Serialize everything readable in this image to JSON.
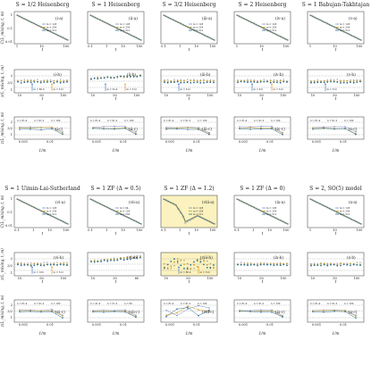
{
  "colors": {
    "s1": "#7f8fc8",
    "s2": "#c8a030",
    "s3": "#2f6f95",
    "ref": "#909090",
    "arrow_blue": "#4a7fd0",
    "arrow_orange": "#e8a020",
    "highlight": "#fbf2bf"
  },
  "chart_data": [
    {
      "section": "top",
      "columns": [
        {
          "title": "S = 1/2 Heisenberg",
          "a": "(i-a)",
          "b": "(i-b)",
          "c": "(i-c)",
          "legend_a": [
            "m = 128",
            "m = 256",
            "m = 512"
          ],
          "legend_c": [
            "n = 81.4",
            "n = 91.2",
            "n = 100"
          ],
          "arrows_b": [
            "m = 80.0",
            "m = 512"
          ],
          "highlight": false,
          "xticks_a": [
            "1",
            "10",
            "100"
          ],
          "xticks_b": [
            "10",
            "50",
            "100"
          ],
          "xticks_c": [
            "0.001",
            "0.01"
          ]
        },
        {
          "title": "S = 1 Heisenberg",
          "a": "(ii-a)",
          "b": "(ii-b)",
          "c": "(ii-c)",
          "legend_a": [
            "m = 128",
            "m = 256",
            "m = 512"
          ],
          "legend_c": [
            "n = 81.4",
            "n = 91.2",
            "n = 100"
          ],
          "arrows_b": [
            "m = 81.4",
            "m = 512"
          ],
          "highlight": false,
          "xticks_a": [
            "0.1",
            "1",
            "10",
            "100"
          ],
          "xticks_b": [
            "10",
            "50",
            "100"
          ],
          "xticks_c": [
            "0.001",
            "0.01"
          ]
        },
        {
          "title": "S = 3/2 Heisenberg",
          "a": "(iii-a)",
          "b": "(iii-b)",
          "c": "(iii-c)",
          "legend_a": [
            "m = 128",
            "m = 256",
            "m = 512"
          ],
          "legend_c": [
            "n = 81.4",
            "n = 91.2",
            "n = 100"
          ],
          "arrows_b": [
            "m = 512"
          ],
          "highlight": false,
          "xticks_a": [
            "0.1",
            "1",
            "10",
            "100"
          ],
          "xticks_b": [
            "10",
            "50",
            "100"
          ],
          "xticks_c": [
            "0.001",
            "0.01"
          ]
        },
        {
          "title": "S = 2 Heisenberg",
          "a": "(iv-a)",
          "b": "(iv-b)",
          "c": "(iv-c)",
          "legend_a": [
            "m = 128",
            "m = 256",
            "m = 512"
          ],
          "legend_c": [
            "n = 81.4",
            "n = 91.2",
            "n = 100"
          ],
          "arrows_b": [
            "m = 8.0",
            "m = 512"
          ],
          "highlight": false,
          "xticks_a": [
            "1",
            "10",
            "100"
          ],
          "xticks_b": [
            "10",
            "50",
            "100"
          ],
          "xticks_c": [
            "0.001",
            "0.01"
          ]
        },
        {
          "title": "S = 1 Babujan-Takhtajan",
          "a": "(v-a)",
          "b": "(v-b)",
          "c": "(v-c)",
          "legend_a": [
            "m = 128",
            "m = 256",
            "m = 512"
          ],
          "legend_c": [
            "n = 81.4",
            "n = 91.2",
            "n = 100"
          ],
          "arrows_b": [
            "m = 512"
          ],
          "highlight": false,
          "xticks_a": [
            "1",
            "10",
            "100"
          ],
          "xticks_b": [
            "10",
            "50",
            "100"
          ],
          "xticks_c": [
            "0.001",
            "0.01"
          ]
        }
      ]
    },
    {
      "section": "bottom",
      "columns": [
        {
          "title": "S = 1 Uimin-Lai-Sutherland",
          "a": "(vi-a)",
          "b": "(vi-b)",
          "c": "(vi-c)",
          "legend_a": [
            "m = 128",
            "m = 256",
            "m = 512"
          ],
          "legend_c": [
            "n = 81.4",
            "n = 91.2",
            "n = 100"
          ],
          "arrows_b": [
            "m = 100",
            "m = 512"
          ],
          "highlight": false,
          "xticks_a": [
            "0.1",
            "1",
            "10",
            "100"
          ],
          "xticks_b": [
            "10",
            "50",
            "100"
          ],
          "xticks_c": [
            "0.001",
            "0.01"
          ]
        },
        {
          "title": "S = 1 ZF (Δ = 0.5)",
          "a": "(vii-a)",
          "b": "(vii-b)",
          "c": "(vii-c)",
          "legend_a": [
            "m = 64",
            "m = 128",
            "m = 256"
          ],
          "legend_c": [
            "n = 41.4",
            "n = 51.2",
            "n = 60"
          ],
          "arrows_b": [],
          "highlight": false,
          "xticks_a": [
            "0.1",
            "1",
            "10",
            "100"
          ],
          "xticks_b": [
            "10",
            "30",
            "60"
          ],
          "xticks_c": [
            "0.001",
            "0.01"
          ]
        },
        {
          "title": "S = 1 ZF (Δ = 1.2)",
          "a": "(viii-a)",
          "b": "(viii-b)",
          "c": "(viii-c)",
          "legend_a": [
            "m = 128",
            "m = 256",
            "m = 512"
          ],
          "legend_c": [
            "n = 81.4",
            "n = 91.2",
            "n = 100"
          ],
          "arrows_b": [
            "m = 80.4",
            "m = 512"
          ],
          "highlight": true,
          "xticks_a": [
            "0.1",
            "1",
            "10",
            "100"
          ],
          "xticks_b": [
            "10",
            "50",
            "100"
          ],
          "xticks_c": [
            "0.001",
            "0.01"
          ]
        },
        {
          "title": "S = 1 ZF (Δ = 0)",
          "a": "(ix-a)",
          "b": "(ix-b)",
          "c": "(ix-c)",
          "legend_a": [
            "m = 128",
            "m = 256",
            "m = 512"
          ],
          "legend_c": [
            "n = 81.4",
            "n = 91.2",
            "n = 100"
          ],
          "arrows_b": [],
          "highlight": false,
          "xticks_a": [
            "0.1",
            "1",
            "10",
            "100"
          ],
          "xticks_b": [
            "10",
            "50",
            "100"
          ],
          "xticks_c": [
            "0.001",
            "0.01"
          ]
        },
        {
          "title": "S = 2, SO(5) model",
          "a": "(x-a)",
          "b": "(x-b)",
          "c": "(x-c)",
          "legend_a": [
            "m = 128",
            "m = 256",
            "m = 512"
          ],
          "legend_c": [
            "n = 81.4",
            "n = 91.2",
            "n = 100"
          ],
          "arrows_b": [],
          "highlight": false,
          "xticks_a": [
            "1",
            "10",
            "100"
          ],
          "xticks_b": [
            "10",
            "50",
            "100"
          ],
          "xticks_c": [
            "0.001",
            "0.01"
          ]
        }
      ]
    }
  ],
  "labels": {
    "ylabel_a": "C(L_mixing, t, m)",
    "ylabel_b": "z(L_mixing, t, m)",
    "ylabel_c": "z(L_mixing, t, m)",
    "xlabel_a": "t",
    "xlabel_b": "t",
    "xlabel_c": "1/m",
    "yticks_a": [
      "1",
      "0.1",
      "0.01"
    ],
    "yticks_bc": [
      "2",
      "3/2",
      "1"
    ]
  }
}
